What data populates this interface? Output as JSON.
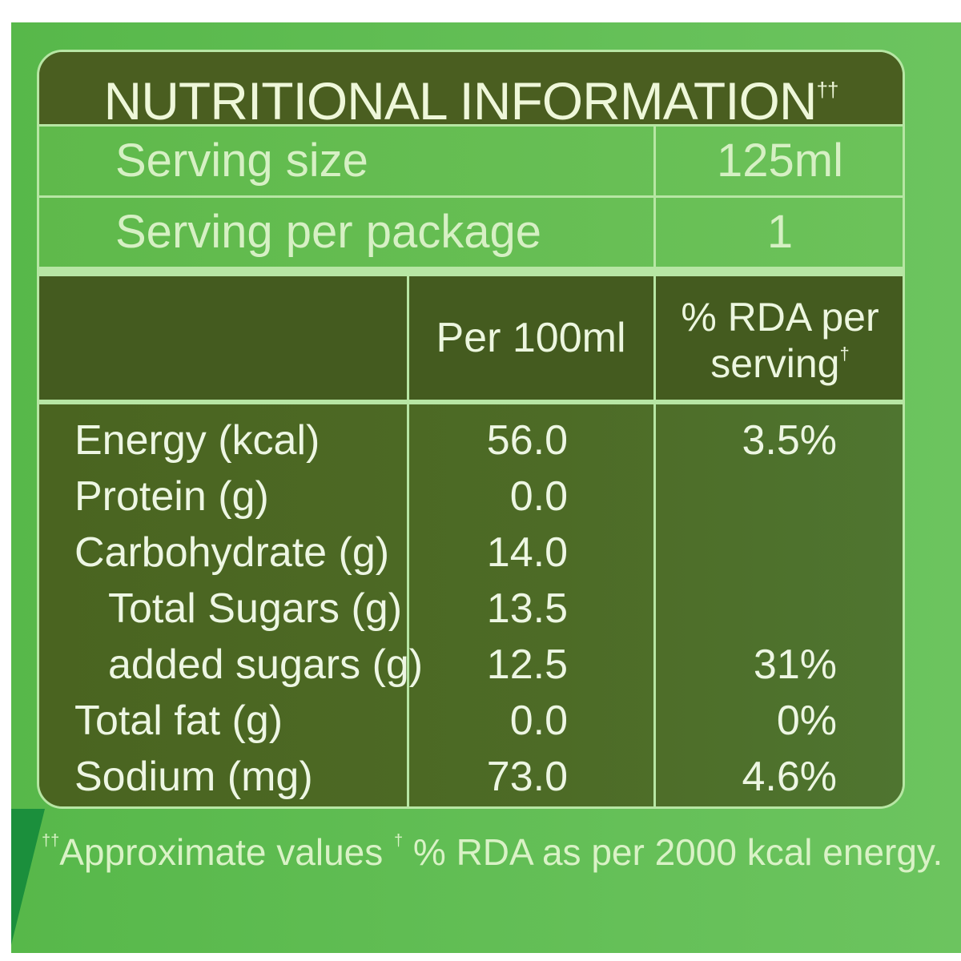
{
  "label": {
    "title": "NUTRITIONAL INFORMATION",
    "title_mark": "††",
    "serving_size_label": "Serving size",
    "serving_size_value": "125ml",
    "servings_label": "Serving per package",
    "servings_value": "1",
    "col_per": "Per 100ml",
    "col_rda_line1": "% RDA per",
    "col_rda_line2": "serving",
    "col_rda_mark": "†",
    "nutrients": [
      {
        "name": "Energy (kcal)",
        "per100": "56.0",
        "rda": "3.5%"
      },
      {
        "name": "Protein (g)",
        "per100": "0.0",
        "rda": ""
      },
      {
        "name": "Carbohydrate (g)",
        "per100": "14.0",
        "rda": ""
      },
      {
        "name": "Total Sugars (g)",
        "per100": "13.5",
        "rda": ""
      },
      {
        "name": "added sugars (g)",
        "per100": "12.5",
        "rda": "31%"
      },
      {
        "name": "Total fat (g)",
        "per100": "0.0",
        "rda": "0%"
      },
      {
        "name": "Sodium (mg)",
        "per100": "73.0",
        "rda": "4.6%"
      }
    ],
    "footnote1_mark": "††",
    "footnote1": "Approximate values",
    "footnote2_mark": "†",
    "footnote2": "% RDA as per 2000 kcal energy."
  },
  "colors": {
    "panel_dark": "#4a5e20",
    "background_green": "#5fb94b",
    "border_light": "#b7e6a4"
  }
}
